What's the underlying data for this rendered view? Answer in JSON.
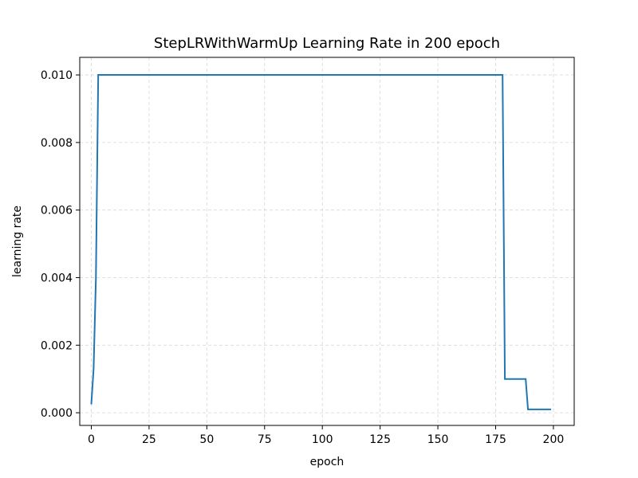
{
  "chart_data": {
    "type": "line",
    "title": "StepLRWithWarmUp Learning Rate in 200 epoch",
    "xlabel": "epoch",
    "ylabel": "learning rate",
    "xlim": [
      -5,
      209
    ],
    "ylim": [
      -0.000375,
      0.01052
    ],
    "x_ticks": [
      0,
      25,
      50,
      75,
      100,
      125,
      150,
      175,
      200
    ],
    "x_tick_labels": [
      "0",
      "25",
      "50",
      "75",
      "100",
      "125",
      "150",
      "175",
      "200"
    ],
    "y_ticks": [
      0.0,
      0.002,
      0.004,
      0.006,
      0.008,
      0.01
    ],
    "y_tick_labels": [
      "0.000",
      "0.002",
      "0.004",
      "0.006",
      "0.008",
      "0.010"
    ],
    "grid": true,
    "grid_style": "dashed",
    "line_color": "#1f77b4",
    "series": [
      {
        "x": [
          0,
          1,
          2,
          3,
          178,
          179,
          188,
          189,
          199
        ],
        "values": [
          0.00025,
          0.0013,
          0.004,
          0.01,
          0.01,
          0.001,
          0.001,
          0.0001,
          0.0001
        ]
      }
    ]
  }
}
